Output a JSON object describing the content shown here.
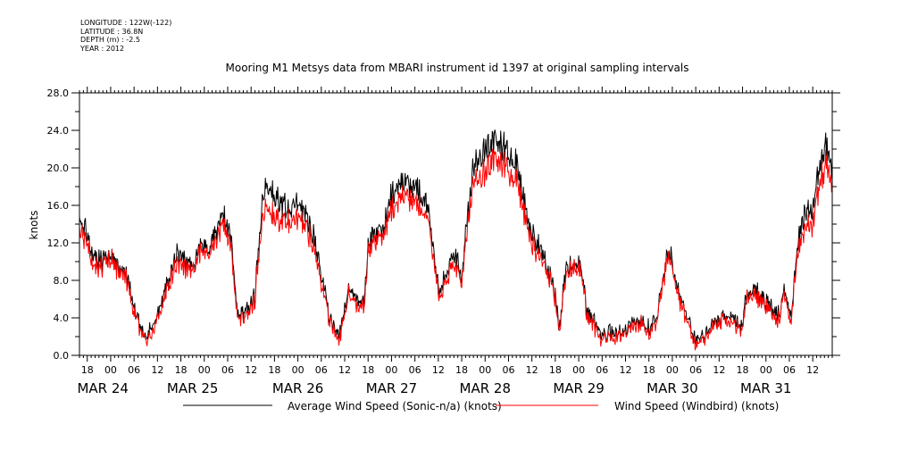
{
  "meta": {
    "longitude": "LONGITUDE : 122W(-122)",
    "latitude": "LATITUDE : 36.8N",
    "depth": "DEPTH (m) : -2.5",
    "year": "YEAR : 2012"
  },
  "chart_data": {
    "type": "line",
    "title": "Mooring M1 Metsys data from MBARI instrument id 1397 at original sampling intervals",
    "xlabel": "",
    "ylabel": "knots",
    "ylim": [
      0,
      28
    ],
    "yticks": [
      "0.0",
      "4.0",
      "8.0",
      "12.0",
      "16.0",
      "20.0",
      "24.0",
      "28.0"
    ],
    "xlim": [
      "2012-03-23T16:00",
      "2012-03-31T17:00"
    ],
    "hour_ticks": [
      {
        "t": "2012-03-23T18:00",
        "label": "18"
      },
      {
        "t": "2012-03-24T00:00",
        "label": "00"
      },
      {
        "t": "2012-03-24T06:00",
        "label": "06"
      },
      {
        "t": "2012-03-24T12:00",
        "label": "12"
      },
      {
        "t": "2012-03-24T18:00",
        "label": "18"
      },
      {
        "t": "2012-03-25T00:00",
        "label": "00"
      },
      {
        "t": "2012-03-25T06:00",
        "label": "06"
      },
      {
        "t": "2012-03-25T12:00",
        "label": "12"
      },
      {
        "t": "2012-03-25T18:00",
        "label": "18"
      },
      {
        "t": "2012-03-26T00:00",
        "label": "00"
      },
      {
        "t": "2012-03-26T06:00",
        "label": "06"
      },
      {
        "t": "2012-03-26T12:00",
        "label": "12"
      },
      {
        "t": "2012-03-26T18:00",
        "label": "18"
      },
      {
        "t": "2012-03-27T00:00",
        "label": "00"
      },
      {
        "t": "2012-03-27T06:00",
        "label": "06"
      },
      {
        "t": "2012-03-27T12:00",
        "label": "12"
      },
      {
        "t": "2012-03-27T18:00",
        "label": "18"
      },
      {
        "t": "2012-03-28T00:00",
        "label": "00"
      },
      {
        "t": "2012-03-28T06:00",
        "label": "06"
      },
      {
        "t": "2012-03-28T12:00",
        "label": "12"
      },
      {
        "t": "2012-03-28T18:00",
        "label": "18"
      },
      {
        "t": "2012-03-29T00:00",
        "label": "00"
      },
      {
        "t": "2012-03-29T06:00",
        "label": "06"
      },
      {
        "t": "2012-03-29T12:00",
        "label": "12"
      },
      {
        "t": "2012-03-29T18:00",
        "label": "18"
      },
      {
        "t": "2012-03-30T00:00",
        "label": "00"
      },
      {
        "t": "2012-03-30T06:00",
        "label": "06"
      },
      {
        "t": "2012-03-30T12:00",
        "label": "12"
      },
      {
        "t": "2012-03-30T18:00",
        "label": "18"
      },
      {
        "t": "2012-03-31T00:00",
        "label": "00"
      },
      {
        "t": "2012-03-31T06:00",
        "label": "06"
      },
      {
        "t": "2012-03-31T12:00",
        "label": "12"
      }
    ],
    "day_labels": [
      {
        "t": "2012-03-23T22:00",
        "label": "MAR 24"
      },
      {
        "t": "2012-03-24T21:00",
        "label": "MAR 25"
      },
      {
        "t": "2012-03-26T00:00",
        "label": "MAR 26"
      },
      {
        "t": "2012-03-27T00:00",
        "label": "MAR 27"
      },
      {
        "t": "2012-03-28T00:00",
        "label": "MAR 28"
      },
      {
        "t": "2012-03-29T00:00",
        "label": "MAR 29"
      },
      {
        "t": "2012-03-30T00:00",
        "label": "MAR 30"
      },
      {
        "t": "2012-03-31T00:00",
        "label": "MAR 31"
      }
    ],
    "legend_placement": "bottom",
    "series": [
      {
        "name": "Average Wind Speed (Sonic-n/a) (knots)",
        "color": "#000000",
        "noise": 0.9,
        "points": [
          [
            "2012-03-23T16:00",
            14.5
          ],
          [
            "2012-03-23T18:00",
            13.0
          ],
          [
            "2012-03-23T20:00",
            10.5
          ],
          [
            "2012-03-23T22:00",
            10.0
          ],
          [
            "2012-03-24T00:00",
            11.0
          ],
          [
            "2012-03-24T02:00",
            9.5
          ],
          [
            "2012-03-24T04:00",
            8.5
          ],
          [
            "2012-03-24T06:00",
            5.0
          ],
          [
            "2012-03-24T08:00",
            3.0
          ],
          [
            "2012-03-24T09:00",
            1.8
          ],
          [
            "2012-03-24T11:00",
            3.5
          ],
          [
            "2012-03-24T13:00",
            5.5
          ],
          [
            "2012-03-24T15:00",
            8.0
          ],
          [
            "2012-03-24T17:00",
            11.0
          ],
          [
            "2012-03-24T19:00",
            10.5
          ],
          [
            "2012-03-24T21:00",
            9.5
          ],
          [
            "2012-03-24T23:00",
            11.5
          ],
          [
            "2012-03-25T01:00",
            11.0
          ],
          [
            "2012-03-25T03:00",
            13.5
          ],
          [
            "2012-03-25T05:00",
            15.0
          ],
          [
            "2012-03-25T07:00",
            12.5
          ],
          [
            "2012-03-25T08:30",
            4.0
          ],
          [
            "2012-03-25T10:00",
            4.5
          ],
          [
            "2012-03-25T12:00",
            5.5
          ],
          [
            "2012-03-25T13:00",
            6.5
          ],
          [
            "2012-03-25T14:00",
            12.0
          ],
          [
            "2012-03-25T15:00",
            17.5
          ],
          [
            "2012-03-25T17:00",
            18.0
          ],
          [
            "2012-03-25T19:00",
            16.5
          ],
          [
            "2012-03-25T21:00",
            16.0
          ],
          [
            "2012-03-26T00:00",
            16.0
          ],
          [
            "2012-03-26T02:00",
            15.0
          ],
          [
            "2012-03-26T04:00",
            13.0
          ],
          [
            "2012-03-26T06:00",
            9.0
          ],
          [
            "2012-03-26T08:00",
            4.0
          ],
          [
            "2012-03-26T10:00",
            2.5
          ],
          [
            "2012-03-26T11:00",
            2.5
          ],
          [
            "2012-03-26T13:00",
            7.0
          ],
          [
            "2012-03-26T15:00",
            6.0
          ],
          [
            "2012-03-26T17:00",
            5.5
          ],
          [
            "2012-03-26T18:00",
            12.0
          ],
          [
            "2012-03-26T20:00",
            13.5
          ],
          [
            "2012-03-26T22:00",
            14.0
          ],
          [
            "2012-03-27T00:00",
            17.0
          ],
          [
            "2012-03-27T02:00",
            18.0
          ],
          [
            "2012-03-27T04:00",
            18.5
          ],
          [
            "2012-03-27T06:00",
            18.0
          ],
          [
            "2012-03-27T08:00",
            17.0
          ],
          [
            "2012-03-27T10:00",
            14.0
          ],
          [
            "2012-03-27T12:00",
            7.0
          ],
          [
            "2012-03-27T14:00",
            8.5
          ],
          [
            "2012-03-27T16:00",
            11.0
          ],
          [
            "2012-03-27T18:00",
            8.0
          ],
          [
            "2012-03-27T19:00",
            13.0
          ],
          [
            "2012-03-27T21:00",
            20.0
          ],
          [
            "2012-03-28T00:00",
            22.0
          ],
          [
            "2012-03-28T02:00",
            23.0
          ],
          [
            "2012-03-28T04:00",
            22.5
          ],
          [
            "2012-03-28T06:00",
            21.5
          ],
          [
            "2012-03-28T08:00",
            21.0
          ],
          [
            "2012-03-28T10:00",
            16.0
          ],
          [
            "2012-03-28T12:00",
            13.0
          ],
          [
            "2012-03-28T14:00",
            11.5
          ],
          [
            "2012-03-28T16:00",
            9.5
          ],
          [
            "2012-03-28T18:00",
            6.5
          ],
          [
            "2012-03-28T19:00",
            2.5
          ],
          [
            "2012-03-28T20:00",
            6.5
          ],
          [
            "2012-03-28T21:00",
            9.5
          ],
          [
            "2012-03-28T23:00",
            10.0
          ],
          [
            "2012-03-29T01:00",
            9.0
          ],
          [
            "2012-03-29T02:00",
            5.0
          ],
          [
            "2012-03-29T04:00",
            3.5
          ],
          [
            "2012-03-29T06:00",
            2.0
          ],
          [
            "2012-03-29T08:00",
            2.5
          ],
          [
            "2012-03-29T10:00",
            2.5
          ],
          [
            "2012-03-29T12:00",
            2.8
          ],
          [
            "2012-03-29T14:00",
            3.5
          ],
          [
            "2012-03-29T16:00",
            3.8
          ],
          [
            "2012-03-29T18:00",
            3.0
          ],
          [
            "2012-03-29T20:00",
            3.5
          ],
          [
            "2012-03-29T21:00",
            7.0
          ],
          [
            "2012-03-29T23:00",
            11.5
          ],
          [
            "2012-03-30T01:00",
            8.0
          ],
          [
            "2012-03-30T02:00",
            6.0
          ],
          [
            "2012-03-30T04:00",
            4.0
          ],
          [
            "2012-03-30T06:00",
            1.5
          ],
          [
            "2012-03-30T08:00",
            1.8
          ],
          [
            "2012-03-30T10:00",
            3.5
          ],
          [
            "2012-03-30T12:00",
            4.0
          ],
          [
            "2012-03-30T14:00",
            4.0
          ],
          [
            "2012-03-30T16:00",
            4.0
          ],
          [
            "2012-03-30T17:30",
            2.5
          ],
          [
            "2012-03-30T19:00",
            6.5
          ],
          [
            "2012-03-30T21:00",
            7.0
          ],
          [
            "2012-03-30T23:00",
            6.0
          ],
          [
            "2012-03-31T01:00",
            5.5
          ],
          [
            "2012-03-31T03:00",
            4.0
          ],
          [
            "2012-03-31T05:00",
            7.0
          ],
          [
            "2012-03-31T06:30",
            4.0
          ],
          [
            "2012-03-31T08:00",
            12.0
          ],
          [
            "2012-03-31T10:00",
            15.0
          ],
          [
            "2012-03-31T12:00",
            15.5
          ],
          [
            "2012-03-31T14:00",
            21.0
          ],
          [
            "2012-03-31T15:30",
            22.5
          ],
          [
            "2012-03-31T17:00",
            19.5
          ]
        ]
      },
      {
        "name": "Wind Speed (Windbird) (knots)",
        "color": "#ff0000",
        "noise": 0.8,
        "points": [
          [
            "2012-03-23T16:00",
            13.5
          ],
          [
            "2012-03-23T18:00",
            12.0
          ],
          [
            "2012-03-23T20:00",
            9.5
          ],
          [
            "2012-03-23T22:00",
            9.5
          ],
          [
            "2012-03-24T00:00",
            10.5
          ],
          [
            "2012-03-24T02:00",
            9.0
          ],
          [
            "2012-03-24T04:00",
            8.0
          ],
          [
            "2012-03-24T06:00",
            4.5
          ],
          [
            "2012-03-24T08:00",
            2.5
          ],
          [
            "2012-03-24T09:00",
            1.5
          ],
          [
            "2012-03-24T11:00",
            3.0
          ],
          [
            "2012-03-24T13:00",
            5.0
          ],
          [
            "2012-03-24T15:00",
            7.5
          ],
          [
            "2012-03-24T17:00",
            10.0
          ],
          [
            "2012-03-24T19:00",
            9.5
          ],
          [
            "2012-03-24T21:00",
            9.0
          ],
          [
            "2012-03-24T23:00",
            11.0
          ],
          [
            "2012-03-25T01:00",
            10.5
          ],
          [
            "2012-03-25T03:00",
            12.5
          ],
          [
            "2012-03-25T05:00",
            14.0
          ],
          [
            "2012-03-25T07:00",
            11.5
          ],
          [
            "2012-03-25T08:30",
            3.5
          ],
          [
            "2012-03-25T10:00",
            4.0
          ],
          [
            "2012-03-25T12:00",
            5.0
          ],
          [
            "2012-03-25T13:00",
            6.0
          ],
          [
            "2012-03-25T14:00",
            11.0
          ],
          [
            "2012-03-25T15:00",
            15.5
          ],
          [
            "2012-03-25T17:00",
            15.5
          ],
          [
            "2012-03-25T19:00",
            14.5
          ],
          [
            "2012-03-25T21:00",
            14.5
          ],
          [
            "2012-03-26T00:00",
            14.5
          ],
          [
            "2012-03-26T02:00",
            13.5
          ],
          [
            "2012-03-26T04:00",
            12.0
          ],
          [
            "2012-03-26T06:00",
            8.0
          ],
          [
            "2012-03-26T08:00",
            3.5
          ],
          [
            "2012-03-26T10:00",
            2.0
          ],
          [
            "2012-03-26T11:00",
            2.0
          ],
          [
            "2012-03-26T13:00",
            6.5
          ],
          [
            "2012-03-26T15:00",
            5.5
          ],
          [
            "2012-03-26T17:00",
            5.0
          ],
          [
            "2012-03-26T18:00",
            11.0
          ],
          [
            "2012-03-26T20:00",
            12.5
          ],
          [
            "2012-03-26T22:00",
            13.0
          ],
          [
            "2012-03-27T00:00",
            15.5
          ],
          [
            "2012-03-27T02:00",
            16.5
          ],
          [
            "2012-03-27T04:00",
            17.0
          ],
          [
            "2012-03-27T06:00",
            16.5
          ],
          [
            "2012-03-27T08:00",
            15.5
          ],
          [
            "2012-03-27T10:00",
            13.0
          ],
          [
            "2012-03-27T12:00",
            6.5
          ],
          [
            "2012-03-27T14:00",
            8.0
          ],
          [
            "2012-03-27T16:00",
            10.0
          ],
          [
            "2012-03-27T18:00",
            7.5
          ],
          [
            "2012-03-27T19:00",
            12.0
          ],
          [
            "2012-03-27T21:00",
            18.5
          ],
          [
            "2012-03-28T00:00",
            19.5
          ],
          [
            "2012-03-28T02:00",
            21.0
          ],
          [
            "2012-03-28T04:00",
            20.5
          ],
          [
            "2012-03-28T06:00",
            19.5
          ],
          [
            "2012-03-28T08:00",
            19.0
          ],
          [
            "2012-03-28T10:00",
            15.0
          ],
          [
            "2012-03-28T12:00",
            12.0
          ],
          [
            "2012-03-28T14:00",
            10.5
          ],
          [
            "2012-03-28T16:00",
            9.0
          ],
          [
            "2012-03-28T18:00",
            6.0
          ],
          [
            "2012-03-28T19:00",
            2.0
          ],
          [
            "2012-03-28T20:00",
            6.0
          ],
          [
            "2012-03-28T21:00",
            9.0
          ],
          [
            "2012-03-28T23:00",
            9.5
          ],
          [
            "2012-03-29T01:00",
            8.5
          ],
          [
            "2012-03-29T02:00",
            4.5
          ],
          [
            "2012-03-29T04:00",
            3.0
          ],
          [
            "2012-03-29T06:00",
            1.5
          ],
          [
            "2012-03-29T08:00",
            2.0
          ],
          [
            "2012-03-29T10:00",
            2.2
          ],
          [
            "2012-03-29T12:00",
            2.5
          ],
          [
            "2012-03-29T14:00",
            3.0
          ],
          [
            "2012-03-29T16:00",
            3.5
          ],
          [
            "2012-03-29T18:00",
            2.5
          ],
          [
            "2012-03-29T20:00",
            3.0
          ],
          [
            "2012-03-29T21:00",
            6.5
          ],
          [
            "2012-03-29T23:00",
            11.0
          ],
          [
            "2012-03-30T01:00",
            7.5
          ],
          [
            "2012-03-30T02:00",
            5.5
          ],
          [
            "2012-03-30T04:00",
            3.5
          ],
          [
            "2012-03-30T06:00",
            1.0
          ],
          [
            "2012-03-30T08:00",
            1.5
          ],
          [
            "2012-03-30T10:00",
            3.0
          ],
          [
            "2012-03-30T12:00",
            3.5
          ],
          [
            "2012-03-30T14:00",
            3.5
          ],
          [
            "2012-03-30T16:00",
            3.5
          ],
          [
            "2012-03-30T17:30",
            2.0
          ],
          [
            "2012-03-30T19:00",
            6.0
          ],
          [
            "2012-03-30T21:00",
            6.5
          ],
          [
            "2012-03-30T23:00",
            5.5
          ],
          [
            "2012-03-31T01:00",
            5.0
          ],
          [
            "2012-03-31T03:00",
            3.5
          ],
          [
            "2012-03-31T05:00",
            6.5
          ],
          [
            "2012-03-31T06:30",
            3.5
          ],
          [
            "2012-03-31T08:00",
            11.0
          ],
          [
            "2012-03-31T10:00",
            13.5
          ],
          [
            "2012-03-31T12:00",
            14.0
          ],
          [
            "2012-03-31T14:00",
            19.0
          ],
          [
            "2012-03-31T15:30",
            20.5
          ],
          [
            "2012-03-31T17:00",
            17.5
          ]
        ]
      }
    ]
  }
}
